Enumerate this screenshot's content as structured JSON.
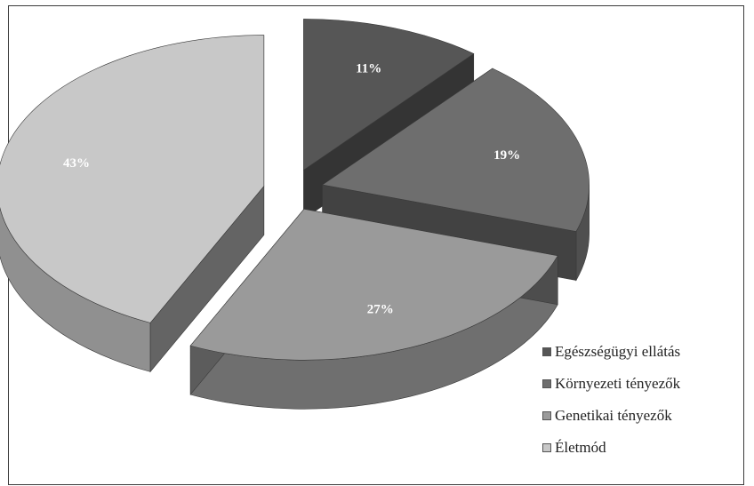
{
  "chart_data": {
    "type": "pie",
    "categories": [
      "Egészségügyi ellátás",
      "Környezeti tényezők",
      "Genetikai tényezők",
      "Életmód"
    ],
    "values": [
      11,
      19,
      27,
      43
    ],
    "value_labels": [
      "11%",
      "19%",
      "27%",
      "43%"
    ],
    "colors": [
      "#565656",
      "#6e6e6e",
      "#9a9a9a",
      "#c8c8c8"
    ],
    "style": "3d-exploded",
    "legend_position": "bottom-right",
    "title": ""
  }
}
